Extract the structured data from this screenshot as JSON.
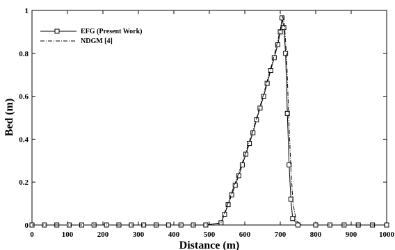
{
  "chart_data": {
    "type": "line",
    "xlabel": "Distance (m)",
    "ylabel": "Bed (m)",
    "xlim": [
      0,
      1000
    ],
    "ylim": [
      0,
      1
    ],
    "xticks": [
      "0",
      "100",
      "200",
      "300",
      "400",
      "500",
      "600",
      "700",
      "800",
      "900",
      "1000"
    ],
    "yticks": [
      "0",
      "0.2",
      "0.4",
      "0.6",
      "0.8",
      "1"
    ],
    "grid": false,
    "legend": "top-left",
    "series": [
      {
        "name": "EFG (Present Work)",
        "style": "solid-square-markers",
        "x": [
          0,
          35,
          70,
          105,
          140,
          175,
          210,
          245,
          280,
          315,
          350,
          385,
          420,
          455,
          490,
          533,
          543,
          553,
          563,
          573,
          583,
          593,
          603,
          613,
          623,
          633,
          643,
          653,
          663,
          673,
          683,
          693,
          700,
          705,
          710,
          715,
          720,
          725,
          730,
          735,
          750,
          800,
          840,
          880,
          920,
          960,
          1000
        ],
        "y": [
          0,
          0,
          0,
          0,
          0,
          0,
          0,
          0,
          0,
          0,
          0,
          0,
          0,
          0,
          0,
          0.01,
          0.05,
          0.095,
          0.14,
          0.185,
          0.23,
          0.28,
          0.33,
          0.38,
          0.43,
          0.49,
          0.545,
          0.6,
          0.66,
          0.72,
          0.78,
          0.84,
          0.9,
          0.965,
          0.92,
          0.8,
          0.52,
          0.28,
          0.12,
          0.03,
          0,
          0,
          0,
          0,
          0,
          0,
          0
        ]
      },
      {
        "name": "NDGM [4]",
        "style": "dash-dot",
        "x": [
          0,
          500,
          533,
          563,
          593,
          623,
          653,
          683,
          700,
          707,
          712,
          718,
          724,
          730,
          736,
          745,
          760,
          1000
        ],
        "y": [
          0,
          0,
          0.01,
          0.15,
          0.29,
          0.44,
          0.61,
          0.79,
          0.91,
          0.975,
          0.93,
          0.78,
          0.5,
          0.26,
          0.1,
          0.02,
          0,
          0
        ]
      }
    ]
  }
}
